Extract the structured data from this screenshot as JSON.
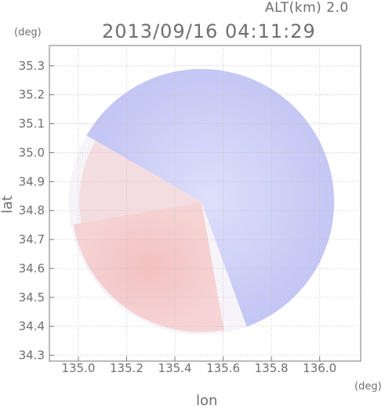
{
  "header": {
    "altitude": "ALT(km) 2.0",
    "timestamp": "2013/09/16 04:11:29"
  },
  "chart_data": {
    "type": "heatmap",
    "title": "2013/09/16 04:11:29",
    "xlabel": "lon",
    "ylabel": "lat",
    "x_unit": "(deg)",
    "y_unit": "(deg)",
    "xlim": [
      134.88,
      136.17
    ],
    "ylim": [
      34.28,
      35.37
    ],
    "x_ticks": [
      135.0,
      135.2,
      135.4,
      135.6,
      135.8,
      136.0
    ],
    "x_tick_labels": [
      "135.0",
      "135.2",
      "135.4",
      "135.6",
      "135.8",
      "136.0"
    ],
    "y_ticks": [
      34.3,
      34.4,
      34.5,
      34.6,
      34.7,
      34.8,
      34.9,
      35.0,
      35.1,
      35.2,
      35.3
    ],
    "y_tick_labels": [
      "34.3",
      "34.4",
      "34.5",
      "34.6",
      "34.7",
      "34.8",
      "34.9",
      "35.0",
      "35.1",
      "35.2",
      "35.3"
    ],
    "grid": true,
    "radar_center": [
      135.51,
      34.83
    ],
    "radar_range_deg": 0.55,
    "colors": {
      "positive": "#f08a8a",
      "negative": "#8c8ff0",
      "neutral": "#f6f4f8"
    }
  }
}
